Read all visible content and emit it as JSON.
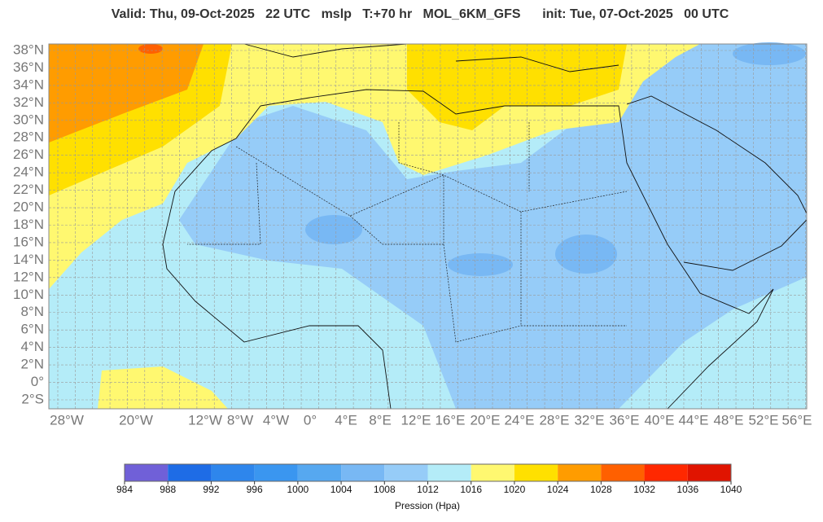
{
  "title": "Valid: Thu, 09-Oct-2025   22 UTC   mslp   T:+70 hr   MOL_6KM_GFS      init: Tue, 07-Oct-2025   00 UTC",
  "lat_labels": [
    "38°N",
    "36°N",
    "34°N",
    "32°N",
    "30°N",
    "28°N",
    "26°N",
    "24°N",
    "22°N",
    "20°N",
    "18°N",
    "16°N",
    "14°N",
    "12°N",
    "10°N",
    "8°N",
    "6°N",
    "4°N",
    "2°N",
    "0°",
    "2°S"
  ],
  "lon_labels": [
    "28°W",
    "20°W",
    "12°W",
    "8°W",
    "4°W",
    "0°",
    "4°E",
    "8°E",
    "12°E",
    "16°E",
    "20°E",
    "24°E",
    "28°E",
    "32°E",
    "36°E",
    "40°E",
    "44°E",
    "48°E",
    "52°E",
    "56°E"
  ],
  "colorbar": {
    "label": "Pression (Hpa)",
    "ticks": [
      984,
      988,
      992,
      996,
      1000,
      1004,
      1008,
      1012,
      1016,
      1020,
      1024,
      1028,
      1032,
      1036,
      1040
    ],
    "colors": [
      "#7060d8",
      "#1e6ce6",
      "#2e86ec",
      "#3a96f0",
      "#56a8f0",
      "#78b8f4",
      "#96ccf8",
      "#b4ecf8",
      "#fff870",
      "#ffe000",
      "#ff9c00",
      "#ff6000",
      "#ff2800",
      "#e01400"
    ]
  }
}
